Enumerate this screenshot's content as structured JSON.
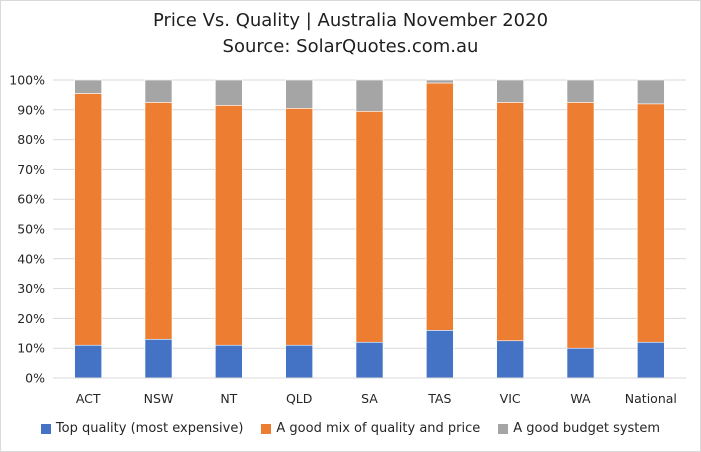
{
  "chart_data": {
    "type": "bar",
    "stacked": true,
    "title": "Price Vs. Quality | Australia November 2020",
    "subtitle": "Source: SolarQuotes.com.au",
    "categories": [
      "ACT",
      "NSW",
      "NT",
      "QLD",
      "SA",
      "TAS",
      "VIC",
      "WA",
      "National"
    ],
    "series": [
      {
        "name": "Top quality (most expensive)",
        "color": "#4472c4",
        "values": [
          11,
          13,
          11,
          11,
          12,
          16,
          12.5,
          10,
          12
        ]
      },
      {
        "name": "A good mix of quality and price",
        "color": "#ed7d31",
        "values": [
          84.5,
          79.5,
          80.5,
          79.5,
          77.5,
          83,
          80,
          82.5,
          80
        ]
      },
      {
        "name": "A good budget system",
        "color": "#a5a5a5",
        "values": [
          4.5,
          7.5,
          8.5,
          9.5,
          10.5,
          1,
          7.5,
          7.5,
          8
        ]
      }
    ],
    "ylim": [
      0,
      100
    ],
    "yticks": [
      "0%",
      "10%",
      "20%",
      "30%",
      "40%",
      "50%",
      "60%",
      "70%",
      "80%",
      "90%",
      "100%"
    ],
    "grid": true,
    "legend_position": "bottom"
  }
}
